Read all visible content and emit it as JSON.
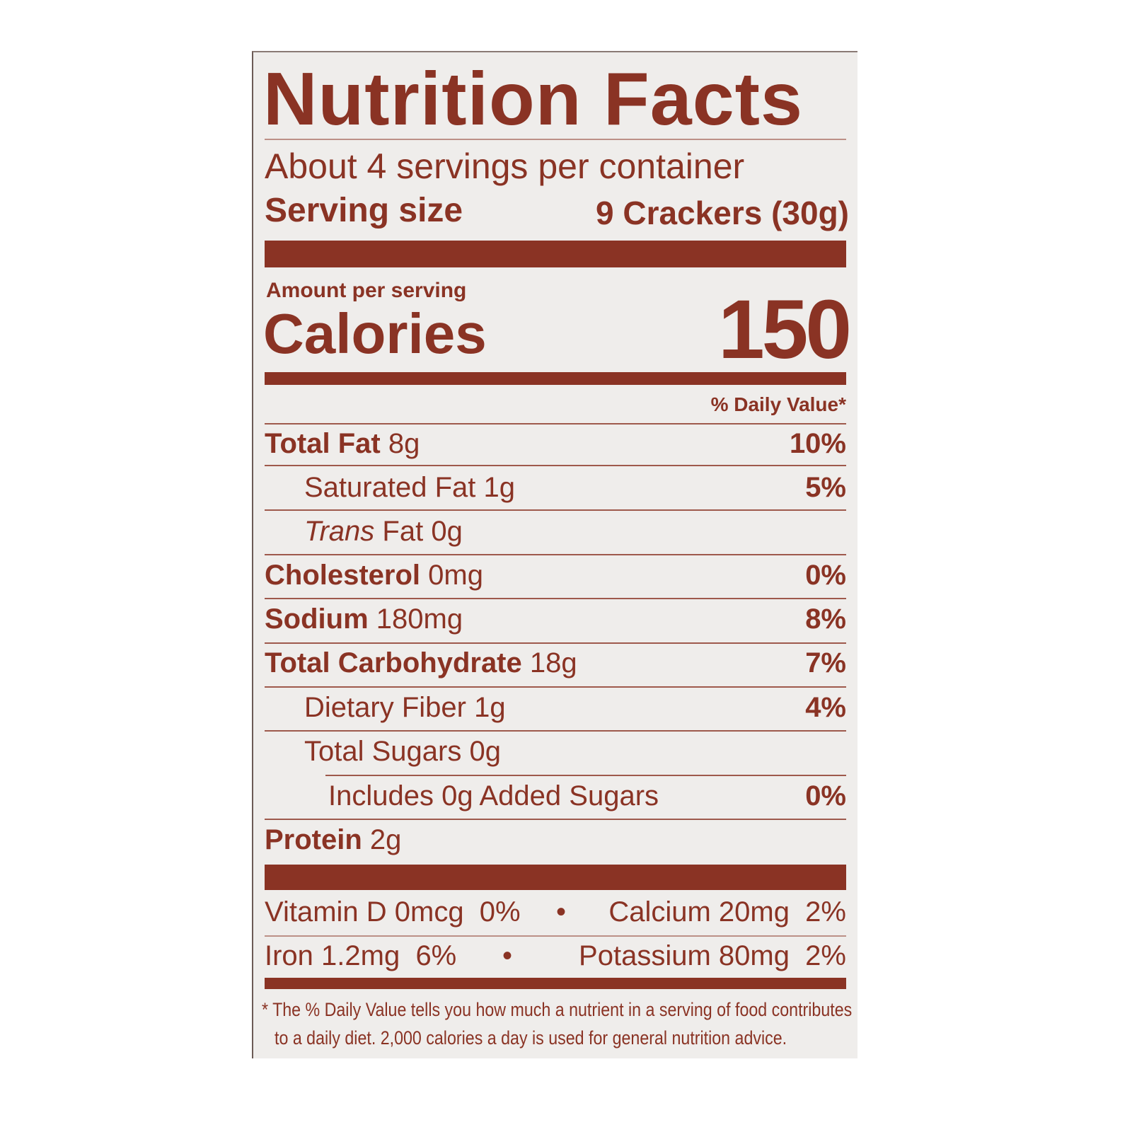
{
  "title": "Nutrition Facts",
  "servings": "About 4 servings per container",
  "serving_size_label": "Serving size",
  "serving_size_value": "9 Crackers (30g)",
  "amount_per_serving": "Amount per serving",
  "calories_label": "Calories",
  "calories_value": "150",
  "dv_header": "% Daily Value*",
  "nutrients": [
    {
      "name": "Total Fat",
      "amount": "8g",
      "dv": "10%"
    },
    {
      "name": "Saturated Fat",
      "amount": "1g",
      "dv": "5%"
    },
    {
      "name_italic": "Trans",
      "name": "Fat",
      "amount": "0g",
      "dv": ""
    },
    {
      "name": "Cholesterol",
      "amount": "0mg",
      "dv": "0%"
    },
    {
      "name": "Sodium",
      "amount": "180mg",
      "dv": "8%"
    },
    {
      "name": "Total Carbohydrate",
      "amount": "18g",
      "dv": "7%"
    },
    {
      "name": "Dietary Fiber",
      "amount": "1g",
      "dv": "4%"
    },
    {
      "name": "Total Sugars",
      "amount": "0g",
      "dv": ""
    },
    {
      "name": "Includes 0g Added Sugars",
      "amount": "",
      "dv": "0%"
    },
    {
      "name": "Protein",
      "amount": "2g",
      "dv": ""
    }
  ],
  "micros": {
    "row1_left": "Vitamin D 0mcg  0%",
    "row1_right": "Calcium 20mg  2%",
    "row2_left": "Iron 1.2mg  6%",
    "row2_right": "Potassium 80mg  2%",
    "bullet": "•"
  },
  "footnote_1": "* The % Daily Value tells you how much a nutrient in a serving of food contributes",
  "footnote_2": "to a daily diet. 2,000 calories a day is used for general nutrition advice.",
  "colors": {
    "ink": "#8a3324",
    "background": "#efedeb"
  }
}
